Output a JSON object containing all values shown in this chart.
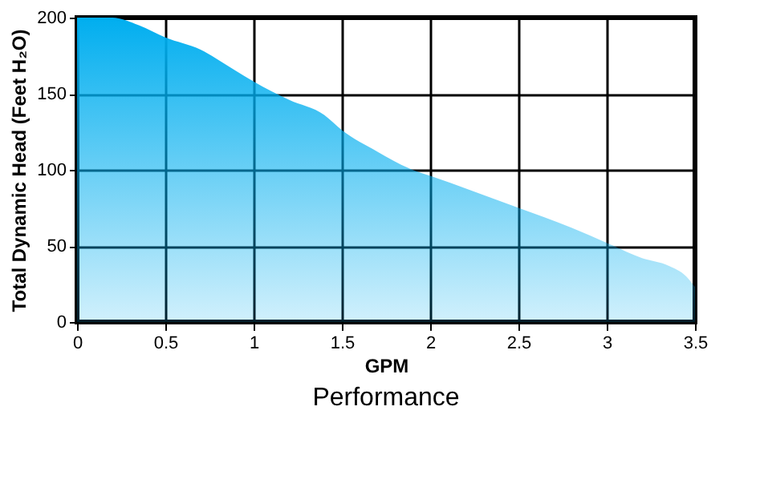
{
  "chart_data": {
    "type": "area",
    "title": "Performance",
    "xlabel": "GPM",
    "ylabel": "Total Dynamic Head (Feet H₂O)",
    "x": [
      0,
      0.2,
      0.35,
      0.5,
      0.7,
      0.9,
      1.0,
      1.2,
      1.4,
      1.5,
      1.7,
      1.9,
      2.0,
      2.5,
      2.8,
      3.0,
      3.2,
      3.35,
      3.45,
      3.5
    ],
    "series": [
      {
        "color": "#00aeef",
        "values": [
          200,
          200,
          195,
          187,
          179,
          165,
          158,
          146,
          136,
          126,
          112,
          100,
          96,
          75,
          62,
          52,
          42,
          37,
          30,
          23
        ]
      }
    ],
    "xlim": [
      0,
      3.5
    ],
    "ylim": [
      0,
      200
    ],
    "xticks": [
      0,
      0.5,
      1,
      1.5,
      2,
      2.5,
      3,
      3.5
    ],
    "yticks": [
      0,
      50,
      100,
      150,
      200
    ],
    "grid": true
  }
}
